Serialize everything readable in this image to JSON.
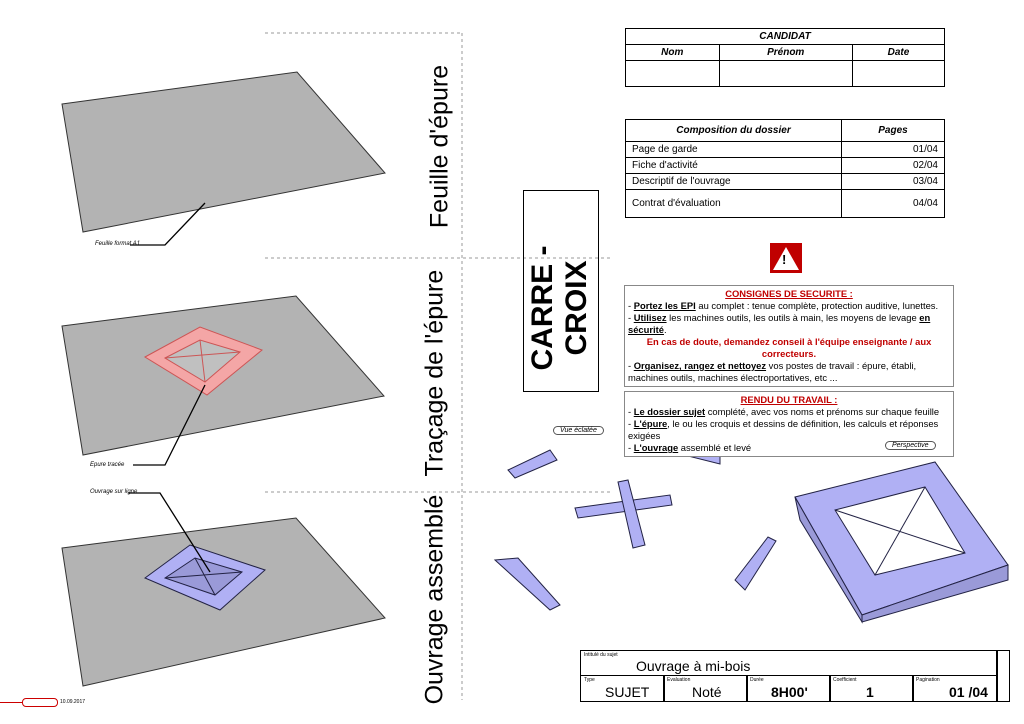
{
  "sections": {
    "feuille": "Feuille d'épure",
    "tracage": "Traçage de l'épure",
    "ouvrage": "Ouvrage assemblé"
  },
  "callouts": {
    "feuille": "Feuille format A1",
    "epure": "Epure tracée",
    "ouvrage": "Ouvrage sur ligne"
  },
  "title": "CARRE - CROIX",
  "candidat": {
    "header": "CANDIDAT",
    "cols": [
      "Nom",
      "Prénom",
      "Date"
    ]
  },
  "composition": {
    "header": "Composition du dossier",
    "pages_header": "Pages",
    "rows": [
      {
        "label": "Page de garde",
        "page": "01/04"
      },
      {
        "label": "Fiche d'activité",
        "page": "02/04"
      },
      {
        "label": "Descriptif de l'ouvrage",
        "page": "03/04"
      },
      {
        "label": "Contrat d'évaluation",
        "page": "04/04"
      }
    ]
  },
  "consignes": {
    "title": "CONSIGNES DE SECURITE :",
    "l1b": "Portez les EPI",
    "l1": " au complet : tenue complète, protection auditive, lunettes.",
    "l2b": "Utilisez",
    "l2": " les machines outils, les outils à main, les moyens de levage ",
    "l2b2": "en sécurité",
    "warn": "En cas de doute, demandez conseil à l'équipe enseignante / aux correcteurs.",
    "l3b": "Organisez, rangez et nettoyez",
    "l3": " vos postes de travail : épure, établi, machines outils, machines électroportatives, etc ..."
  },
  "rendu": {
    "title": "RENDU DU TRAVAIL :",
    "l1b": "Le dossier sujet",
    "l1": " complété, avec vos noms et prénoms sur chaque feuille",
    "l2b": "L'épure",
    "l2": ", le ou les croquis et dessins de définition, les calculs et réponses exigées",
    "l3b": "L'ouvrage",
    "l3": " assemblé et levé"
  },
  "views": {
    "eclatee": "Vue éclatée",
    "perspective": "Perspective"
  },
  "cartouche": {
    "intitule_label": "Intitulé du sujet",
    "intitule": "Ouvrage à mi-bois",
    "type_label": "Type",
    "type": "SUJET",
    "evaluation_label": "Evaluation",
    "evaluation": "Noté",
    "duree_label": "Durée",
    "duree": "8H00'",
    "coef_label": "Coefficient",
    "coef": "1",
    "pagination_label": "Pagination",
    "pagination": "01 /04"
  },
  "footer": {
    "date": "10.09.2017"
  },
  "colors": {
    "sheet": "#b3b3b3",
    "epure": "#f4a6a6",
    "wood": "#b0b0f4",
    "warning": "#c00000"
  }
}
